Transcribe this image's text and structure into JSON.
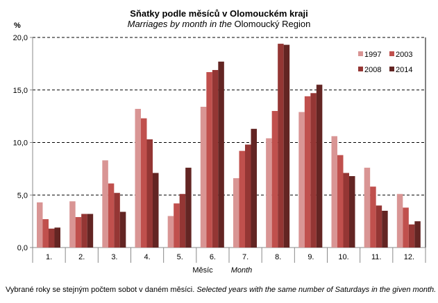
{
  "title": "Sňatky podle měsíců v Olomouckém  kraji",
  "subtitle_en_italic": "Marriages  by month in the",
  "subtitle_region": " Olomoucký Region",
  "footnote_cz": "Vybrané roky se stejným počtem sobot  v daném měsíci.",
  "footnote_en": "  Selected years with the same number of Saturdays in the given month.",
  "chart_data": {
    "type": "bar",
    "title": "Sňatky podle měsíců v Olomouckém kraji",
    "subtitle": "Marriages by month in the Olomoucký Region",
    "ylabel": "%",
    "xlabel_cz": "Měsíc",
    "xlabel_en": "Month",
    "ylim": [
      0,
      20
    ],
    "yticks": [
      "0,0",
      "5,0",
      "10,0",
      "15,0",
      "20,0"
    ],
    "grid": true,
    "legend_position": "top-right",
    "categories": [
      "1.",
      "2.",
      "3.",
      "4.",
      "5.",
      "6.",
      "7.",
      "8.",
      "9.",
      "10.",
      "11.",
      "12."
    ],
    "series": [
      {
        "name": "1997",
        "color": "#d99594",
        "values": [
          4.3,
          4.4,
          8.3,
          13.2,
          3.0,
          13.4,
          6.6,
          10.4,
          12.9,
          10.6,
          7.6,
          5.1
        ]
      },
      {
        "name": "2003",
        "color": "#c0504d",
        "values": [
          2.7,
          2.9,
          6.1,
          12.3,
          4.2,
          16.7,
          9.2,
          13.0,
          14.4,
          8.8,
          5.8,
          3.8
        ]
      },
      {
        "name": "2008",
        "color": "#943634",
        "values": [
          1.8,
          3.2,
          5.2,
          10.3,
          5.1,
          16.9,
          9.8,
          19.4,
          14.7,
          7.1,
          4.0,
          2.2
        ]
      },
      {
        "name": "2014",
        "color": "#632523",
        "values": [
          1.9,
          3.2,
          3.4,
          7.1,
          7.6,
          17.7,
          11.3,
          19.3,
          15.5,
          6.8,
          3.5,
          2.5
        ]
      }
    ]
  }
}
